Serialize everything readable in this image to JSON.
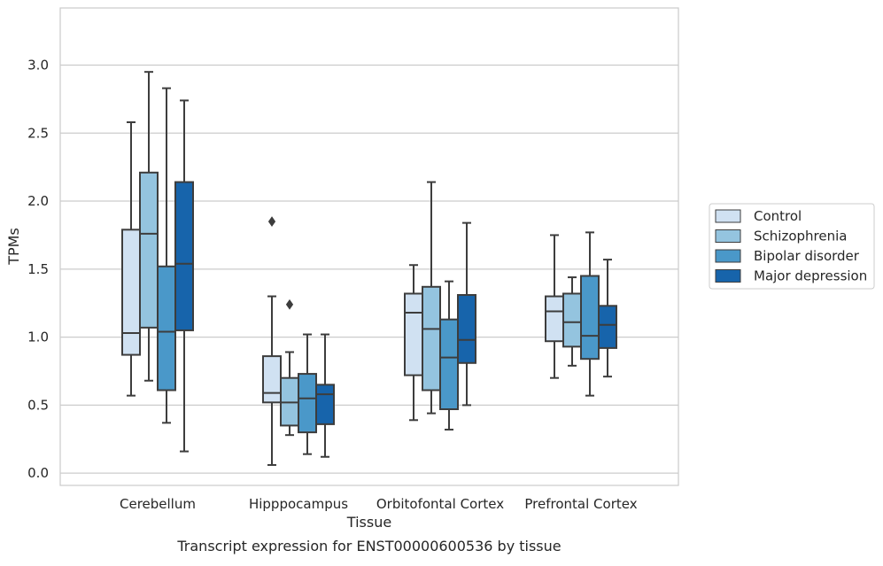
{
  "chart_data": {
    "type": "boxplot",
    "title": "",
    "caption": "Transcript expression for ENST00000600536 by tissue",
    "xlabel": "Tissue",
    "ylabel": "TPMs",
    "ylim": [
      -0.09,
      3.42
    ],
    "yticks": [
      0.0,
      0.5,
      1.0,
      1.5,
      2.0,
      2.5,
      3.0
    ],
    "ytick_labels": [
      "0.0",
      "0.5",
      "1.0",
      "1.5",
      "2.0",
      "2.5",
      "3.0"
    ],
    "grid": "horizontal",
    "legend_position": "right",
    "categories": [
      "Cerebellum",
      "Hipppocampus",
      "Orbitofontal Cortex",
      "Prefrontal Cortex"
    ],
    "series": [
      {
        "name": "Control",
        "color": "#d0e1f2",
        "boxes": [
          {
            "whisker_low": 0.57,
            "q1": 0.87,
            "median": 1.03,
            "q3": 1.79,
            "whisker_high": 2.58,
            "outliers": []
          },
          {
            "whisker_low": 0.06,
            "q1": 0.52,
            "median": 0.59,
            "q3": 0.86,
            "whisker_high": 1.3,
            "outliers": [
              1.85
            ]
          },
          {
            "whisker_low": 0.39,
            "q1": 0.72,
            "median": 1.18,
            "q3": 1.32,
            "whisker_high": 1.53,
            "outliers": []
          },
          {
            "whisker_low": 0.7,
            "q1": 0.97,
            "median": 1.19,
            "q3": 1.3,
            "whisker_high": 1.75,
            "outliers": []
          }
        ]
      },
      {
        "name": "Schizophrenia",
        "color": "#94c4df",
        "boxes": [
          {
            "whisker_low": 0.68,
            "q1": 1.07,
            "median": 1.76,
            "q3": 2.21,
            "whisker_high": 2.95,
            "outliers": []
          },
          {
            "whisker_low": 0.28,
            "q1": 0.35,
            "median": 0.52,
            "q3": 0.7,
            "whisker_high": 0.89,
            "outliers": [
              1.24
            ]
          },
          {
            "whisker_low": 0.44,
            "q1": 0.61,
            "median": 1.06,
            "q3": 1.37,
            "whisker_high": 2.14,
            "outliers": []
          },
          {
            "whisker_low": 0.79,
            "q1": 0.93,
            "median": 1.11,
            "q3": 1.32,
            "whisker_high": 1.44,
            "outliers": []
          }
        ]
      },
      {
        "name": "Bipolar disorder",
        "color": "#4a98c9",
        "boxes": [
          {
            "whisker_low": 0.37,
            "q1": 0.61,
            "median": 1.04,
            "q3": 1.52,
            "whisker_high": 2.83,
            "outliers": []
          },
          {
            "whisker_low": 0.14,
            "q1": 0.3,
            "median": 0.55,
            "q3": 0.73,
            "whisker_high": 1.02,
            "outliers": []
          },
          {
            "whisker_low": 0.32,
            "q1": 0.47,
            "median": 0.85,
            "q3": 1.13,
            "whisker_high": 1.41,
            "outliers": []
          },
          {
            "whisker_low": 0.57,
            "q1": 0.84,
            "median": 1.01,
            "q3": 1.45,
            "whisker_high": 1.77,
            "outliers": []
          }
        ]
      },
      {
        "name": "Major depression",
        "color": "#1764ab",
        "boxes": [
          {
            "whisker_low": 0.16,
            "q1": 1.05,
            "median": 1.54,
            "q3": 2.14,
            "whisker_high": 2.74,
            "outliers": []
          },
          {
            "whisker_low": 0.12,
            "q1": 0.36,
            "median": 0.58,
            "q3": 0.65,
            "whisker_high": 1.02,
            "outliers": []
          },
          {
            "whisker_low": 0.5,
            "q1": 0.81,
            "median": 0.98,
            "q3": 1.31,
            "whisker_high": 1.84,
            "outliers": []
          },
          {
            "whisker_low": 0.71,
            "q1": 0.92,
            "median": 1.09,
            "q3": 1.23,
            "whisker_high": 1.57,
            "outliers": []
          }
        ]
      }
    ]
  },
  "style": {
    "grid_color": "#cccccc",
    "frame_color": "#cccccc",
    "line_color": "#3d3d3d",
    "text_color": "#262626"
  }
}
